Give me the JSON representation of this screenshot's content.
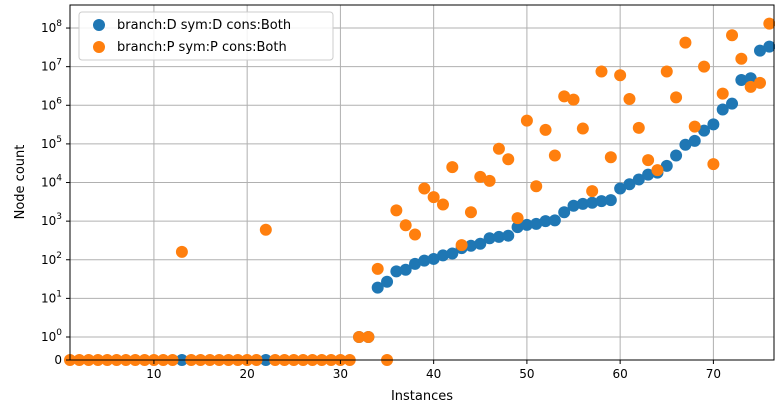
{
  "chart_data": {
    "type": "scatter",
    "xlabel": "Instances",
    "ylabel": "Node count",
    "xlim": [
      1,
      76.5
    ],
    "y_scale": "symlog",
    "grid": true,
    "legend_position": "top-left",
    "x_ticks": [
      {
        "value": 10,
        "label": "10"
      },
      {
        "value": 20,
        "label": "20"
      },
      {
        "value": 30,
        "label": "30"
      },
      {
        "value": 40,
        "label": "40"
      },
      {
        "value": 50,
        "label": "50"
      },
      {
        "value": 60,
        "label": "60"
      },
      {
        "value": 70,
        "label": "70"
      }
    ],
    "y_ticks": [
      {
        "value": 0,
        "base": "0",
        "exp": ""
      },
      {
        "value": 1,
        "base": "10",
        "exp": "0"
      },
      {
        "value": 10,
        "base": "10",
        "exp": "1"
      },
      {
        "value": 100,
        "base": "10",
        "exp": "2"
      },
      {
        "value": 1000,
        "base": "10",
        "exp": "3"
      },
      {
        "value": 10000,
        "base": "10",
        "exp": "4"
      },
      {
        "value": 100000,
        "base": "10",
        "exp": "5"
      },
      {
        "value": 1000000,
        "base": "10",
        "exp": "6"
      },
      {
        "value": 10000000,
        "base": "10",
        "exp": "7"
      },
      {
        "value": 100000000,
        "base": "10",
        "exp": "8"
      }
    ],
    "series": [
      {
        "name": "branch:D sym:D cons:Both",
        "color": "#1f77b4",
        "points": [
          [
            13,
            0
          ],
          [
            22,
            0
          ],
          [
            32,
            1
          ],
          [
            33,
            1
          ],
          [
            34,
            19
          ],
          [
            35,
            27
          ],
          [
            36,
            50
          ],
          [
            37,
            55
          ],
          [
            38,
            78
          ],
          [
            39,
            95
          ],
          [
            40,
            105
          ],
          [
            41,
            130
          ],
          [
            42,
            145
          ],
          [
            43,
            200
          ],
          [
            44,
            230
          ],
          [
            45,
            260
          ],
          [
            46,
            360
          ],
          [
            47,
            390
          ],
          [
            48,
            420
          ],
          [
            49,
            700
          ],
          [
            50,
            800
          ],
          [
            51,
            850
          ],
          [
            52,
            1000
          ],
          [
            53,
            1050
          ],
          [
            54,
            1700
          ],
          [
            55,
            2500
          ],
          [
            56,
            2800
          ],
          [
            57,
            3000
          ],
          [
            58,
            3300
          ],
          [
            59,
            3500
          ],
          [
            60,
            7000
          ],
          [
            61,
            9000
          ],
          [
            62,
            12000
          ],
          [
            63,
            16000
          ],
          [
            64,
            18000
          ],
          [
            65,
            27000
          ],
          [
            66,
            50000
          ],
          [
            67,
            95000
          ],
          [
            68,
            120000
          ],
          [
            69,
            220000
          ],
          [
            70,
            320000
          ],
          [
            71,
            780000
          ],
          [
            72,
            1100000
          ],
          [
            73,
            4500000
          ],
          [
            74,
            5000000
          ],
          [
            75,
            26000000
          ],
          [
            76,
            33000000
          ]
        ]
      },
      {
        "name": "branch:P sym:P cons:Both",
        "color": "#ff7f0e",
        "points": [
          [
            1,
            0
          ],
          [
            2,
            0
          ],
          [
            3,
            0
          ],
          [
            4,
            0
          ],
          [
            5,
            0
          ],
          [
            6,
            0
          ],
          [
            7,
            0
          ],
          [
            8,
            0
          ],
          [
            9,
            0
          ],
          [
            10,
            0
          ],
          [
            11,
            0
          ],
          [
            12,
            0
          ],
          [
            13,
            160
          ],
          [
            14,
            0
          ],
          [
            15,
            0
          ],
          [
            16,
            0
          ],
          [
            17,
            0
          ],
          [
            18,
            0
          ],
          [
            19,
            0
          ],
          [
            20,
            0
          ],
          [
            21,
            0
          ],
          [
            22,
            600
          ],
          [
            23,
            0
          ],
          [
            24,
            0
          ],
          [
            25,
            0
          ],
          [
            26,
            0
          ],
          [
            27,
            0
          ],
          [
            28,
            0
          ],
          [
            29,
            0
          ],
          [
            30,
            0
          ],
          [
            31,
            0
          ],
          [
            32,
            1
          ],
          [
            33,
            1
          ],
          [
            34,
            58
          ],
          [
            35,
            0
          ],
          [
            36,
            1900
          ],
          [
            37,
            780
          ],
          [
            38,
            450
          ],
          [
            39,
            7000
          ],
          [
            40,
            4200
          ],
          [
            41,
            2700
          ],
          [
            42,
            25000
          ],
          [
            43,
            240
          ],
          [
            44,
            1700
          ],
          [
            45,
            14000
          ],
          [
            46,
            11000
          ],
          [
            47,
            75000
          ],
          [
            48,
            40000
          ],
          [
            49,
            1200
          ],
          [
            50,
            400000
          ],
          [
            51,
            8000
          ],
          [
            52,
            230000
          ],
          [
            53,
            50000
          ],
          [
            54,
            1700000
          ],
          [
            55,
            1400000
          ],
          [
            56,
            250000
          ],
          [
            57,
            6000
          ],
          [
            58,
            7500000
          ],
          [
            59,
            45000
          ],
          [
            60,
            6000000
          ],
          [
            61,
            1450000
          ],
          [
            62,
            260000
          ],
          [
            63,
            38000
          ],
          [
            64,
            21000
          ],
          [
            65,
            7500000
          ],
          [
            66,
            1600000
          ],
          [
            67,
            42000000
          ],
          [
            68,
            280000
          ],
          [
            69,
            10000000
          ],
          [
            70,
            30000
          ],
          [
            71,
            2000000
          ],
          [
            72,
            65000000
          ],
          [
            73,
            16000000
          ],
          [
            74,
            3000000
          ],
          [
            75,
            3800000
          ],
          [
            76,
            130000000
          ]
        ]
      }
    ]
  }
}
